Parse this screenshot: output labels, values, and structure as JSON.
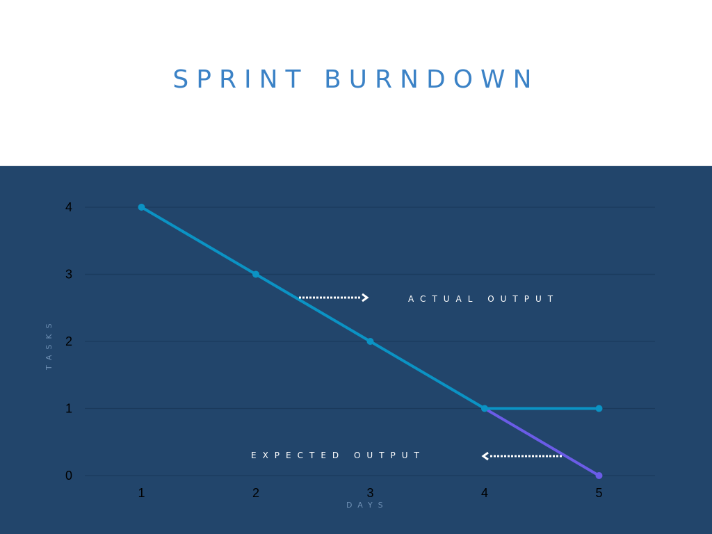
{
  "title": "SPRINT BURNDOWN",
  "chart_data": {
    "type": "line",
    "title": "SPRINT BURNDOWN",
    "xlabel": "DAYS",
    "ylabel": "TASKS",
    "x": [
      1,
      2,
      3,
      4,
      5
    ],
    "xlim": [
      0.5,
      5.5
    ],
    "ylim": [
      0,
      4
    ],
    "yticks": [
      0,
      1,
      2,
      3,
      4
    ],
    "grid": true,
    "series": [
      {
        "name": "ACTUAL OUTPUT",
        "x": [
          1,
          2,
          3,
          4,
          5
        ],
        "values": [
          4,
          3,
          2,
          1,
          1
        ],
        "color": "#0b93c4"
      },
      {
        "name": "EXPECTED OUTPUT",
        "x": [
          4,
          5
        ],
        "values": [
          1,
          0
        ],
        "color": "#6b5ce7"
      }
    ],
    "annotations": [
      {
        "text": "ACTUAL OUTPUT",
        "arrow": "right"
      },
      {
        "text": "EXPECTED OUTPUT",
        "arrow": "left"
      }
    ]
  },
  "colors": {
    "background": "#22456b",
    "title": "#3b82c6",
    "gridline": "#1b3a5c"
  }
}
